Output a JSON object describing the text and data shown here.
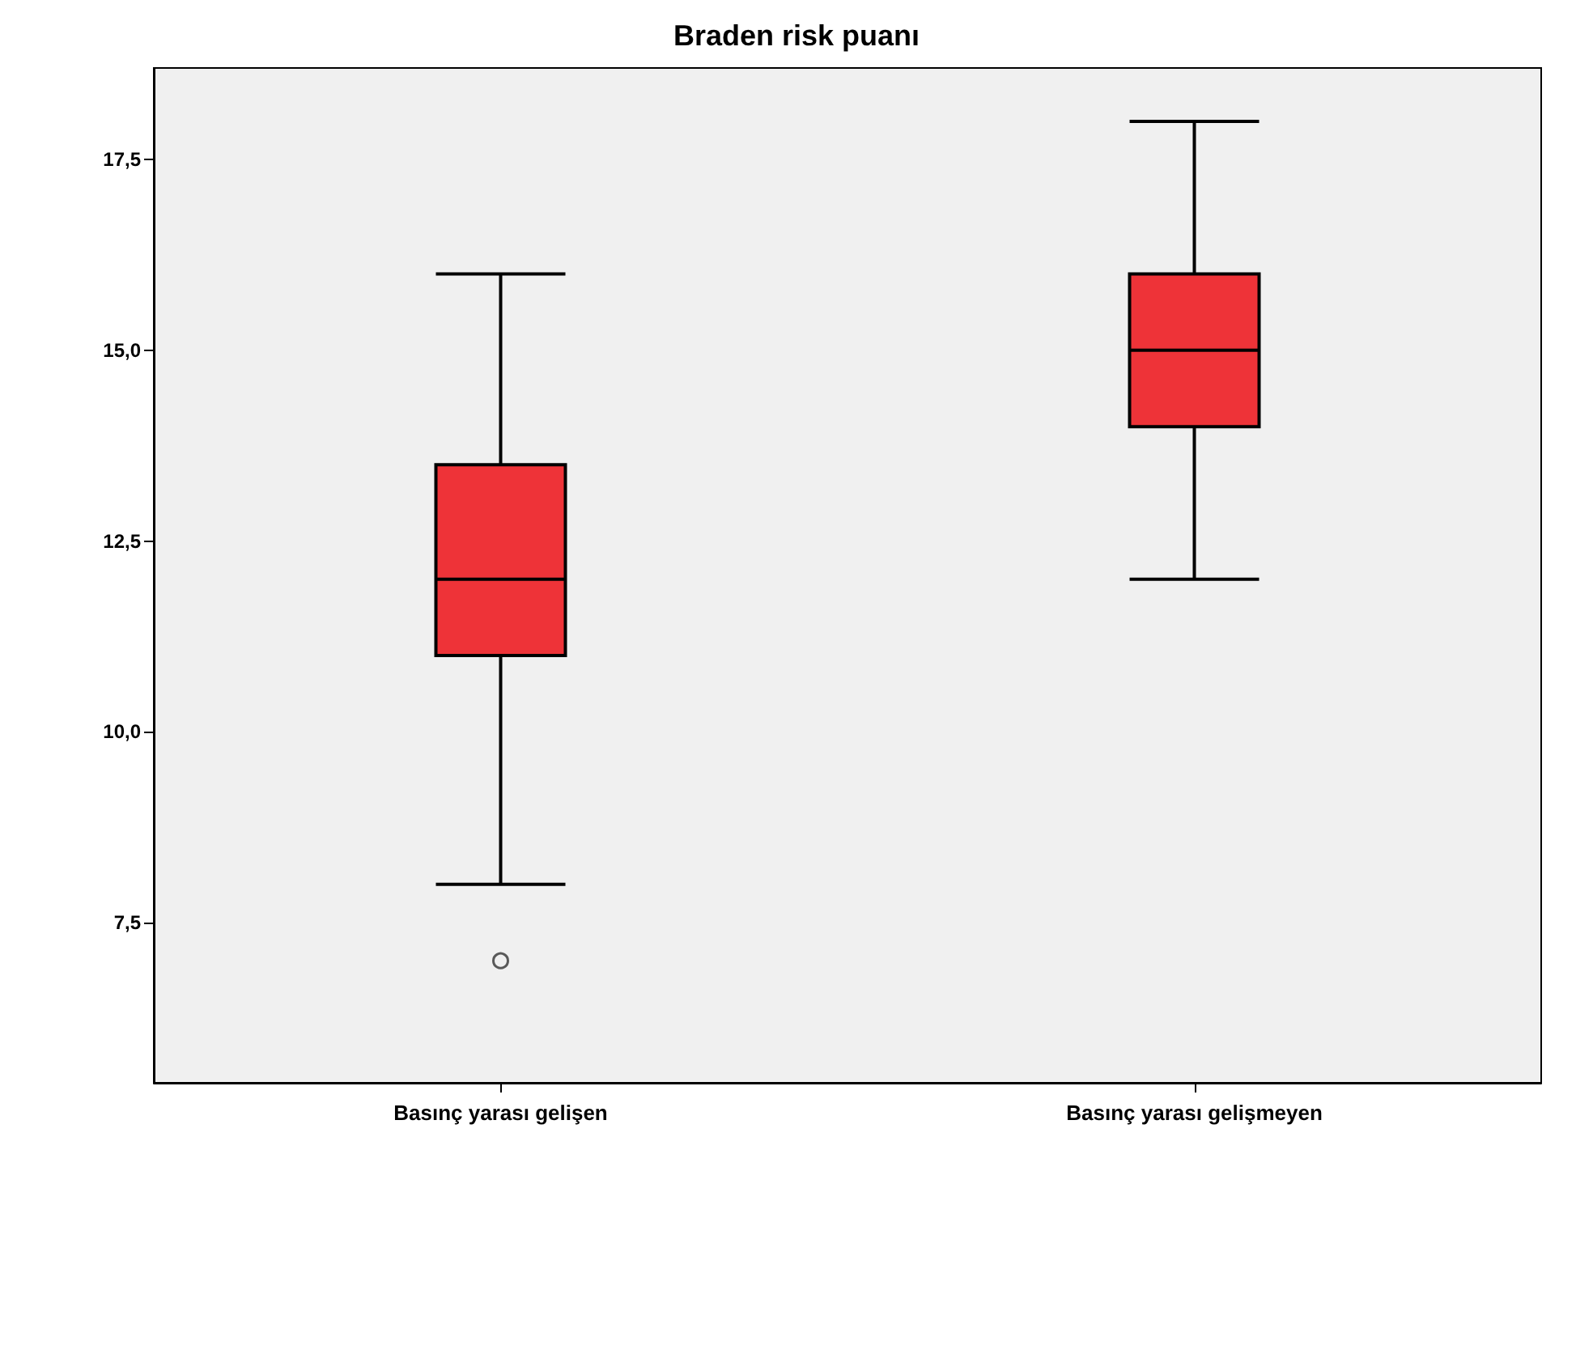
{
  "chart_data": {
    "type": "box",
    "title": "Braden risk puanı",
    "categories": [
      "Basınç yarası gelişen",
      "Basınç yarası gelişmeyen"
    ],
    "color": "#ee3338",
    "boxes": [
      {
        "low": 8,
        "q1": 11,
        "median": 12,
        "q3": 13.5,
        "high": 16,
        "outliers": [
          7
        ]
      },
      {
        "low": 12,
        "q1": 14,
        "median": 15,
        "q3": 16,
        "high": 18
      }
    ],
    "ylim": [
      5.4,
      18.7
    ],
    "yticks": [
      {
        "value": 7.5,
        "label": "7,5"
      },
      {
        "value": 10,
        "label": "10,0"
      },
      {
        "value": 12.5,
        "label": "12,5"
      },
      {
        "value": 15,
        "label": "15,0"
      },
      {
        "value": 17.5,
        "label": "17,5"
      }
    ],
    "grid": false
  }
}
